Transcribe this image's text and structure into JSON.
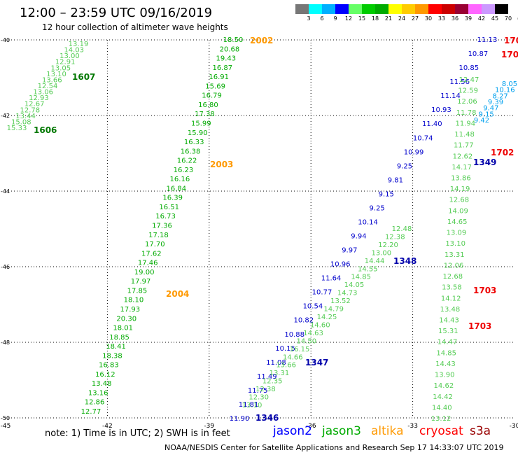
{
  "title": "12:00 – 23:59 UTC 09/16/2019",
  "subtitle": "12 hour collection of altimeter wave heights",
  "note": "note:  1) Time is in UTC;  2) SWH is in feet",
  "credit": "NOAA/NESDIS Center for Satellite Applications and Research    Sep 17 14:33:07 UTC 2019",
  "satellites": [
    {
      "name": "jason2",
      "color": "#0000ff"
    },
    {
      "name": "jason3",
      "color": "#00aa00"
    },
    {
      "name": "altika",
      "color": "#ff9900"
    },
    {
      "name": "cryosat",
      "color": "#ff0000"
    },
    {
      "name": "s3a",
      "color": "#990000"
    }
  ],
  "colorbar": {
    "labels": [
      "3",
      "6",
      "9",
      "12",
      "15",
      "18",
      "21",
      "24",
      "27",
      "30",
      "33",
      "36",
      "39",
      "42",
      "45",
      "70",
      "(ft)"
    ],
    "colors": [
      "#777777",
      "#00ffff",
      "#00b0ff",
      "#0000ff",
      "#66ff66",
      "#00cc00",
      "#00aa00",
      "#ffff00",
      "#ffcc00",
      "#ff9900",
      "#ff0000",
      "#cc0000",
      "#990033",
      "#ff66ff",
      "#cc99ff",
      "#000000"
    ]
  },
  "axes": {
    "lon_labels": [
      "-45",
      "-42",
      "-39",
      "-36",
      "-33",
      "-30"
    ],
    "lat_labels": [
      "-40",
      "-42",
      "-44",
      "-46",
      "-48",
      "-50"
    ]
  },
  "chart_data": {
    "type": "map",
    "lon_range": [
      -45,
      -30
    ],
    "lat_range": [
      -50,
      -40
    ],
    "tracks": [
      {
        "satellite": "jason3",
        "pass": "1606/1607",
        "color": "#66dd66",
        "darkcolor": "#00aa00",
        "values": [
          "13.19",
          "14.03",
          "13.00",
          "12.91",
          "13.05",
          "13.10",
          "13.66",
          "12.54",
          "13.06",
          "12.93",
          "12.67",
          "12.78",
          "13.44",
          "15.08",
          "15.33"
        ],
        "labels": [
          "1607",
          "1606"
        ]
      },
      {
        "satellite": "altika",
        "pass": "2002-2004",
        "color": "#00aa00",
        "values": [
          "18.50",
          "20.68",
          "19.43",
          "16.87",
          "16.91",
          "15.69",
          "16.79",
          "16.80",
          "17.38",
          "15.99",
          "15.90",
          "16.33",
          "16.38",
          "16.22",
          "16.23",
          "16.16",
          "16.84",
          "16.39",
          "16.51",
          "16.73",
          "17.36",
          "17.18",
          "17.70",
          "17.62",
          "17.46",
          "19.00",
          "17.97",
          "17.85",
          "18.10",
          "17.93",
          "20.30",
          "18.01",
          "18.85",
          "18.41",
          "18.38",
          "16.83",
          "16.12",
          "13.48",
          "13.16",
          "12.86",
          "12.77"
        ],
        "labels": [
          "2002",
          "2003",
          "2004"
        ]
      },
      {
        "satellite": "jason2",
        "pass": "1346-1349",
        "color": "#0000cc",
        "values": [
          "11.13",
          "10.87",
          "10.85",
          "11.56",
          "11.14",
          "10.93",
          "11.40",
          "10.74",
          "10.99",
          "9.25",
          "9.81",
          "9.15",
          "9.25",
          "10.14",
          "9.94",
          "9.97",
          "10.96",
          "11.64",
          "10.77",
          "10.54",
          "10.82",
          "10.88",
          "10.15",
          "11.08",
          "11.49",
          "11.75",
          "11.81",
          "11.90"
        ],
        "labels": [
          "1349",
          "1348",
          "1347",
          "1346"
        ]
      },
      {
        "satellite": "jason3",
        "pass": "mid",
        "color": "#66dd66",
        "values": [
          "12.48",
          "12.38",
          "12.20",
          "13.00",
          "14.44",
          "14.55",
          "14.85",
          "14.05",
          "14.73",
          "13.52",
          "14.79",
          "14.25",
          "14.60",
          "14.63",
          "14.50",
          "16.15",
          "14.66",
          "13.66",
          "13.31",
          "12.35",
          "12.38",
          "12.30",
          "13.10"
        ]
      },
      {
        "satellite": "cryosat",
        "pass": "1702/1703",
        "color": "#66dd66",
        "values": [
          "12.47",
          "12.59",
          "12.06",
          "11.78",
          "11.94",
          "11.48",
          "11.77",
          "12.62",
          "14.17",
          "13.86",
          "14.19",
          "12.68",
          "14.09",
          "14.65",
          "13.09",
          "13.10",
          "13.31",
          "12.06",
          "12.68",
          "13.58",
          "14.12",
          "13.48",
          "14.43",
          "15.31",
          "14.47",
          "14.85",
          "14.43",
          "13.90",
          "14.62",
          "14.42",
          "14.40",
          "13.12"
        ],
        "labels": [
          "1702",
          "1703",
          "1703"
        ]
      },
      {
        "satellite": "cryosat",
        "pass": "top-right",
        "color": "#00b0ff",
        "values": [
          "8.05",
          "10.16",
          "8.27",
          "9.39",
          "9.47",
          "9.15",
          "9.42"
        ]
      }
    ]
  }
}
